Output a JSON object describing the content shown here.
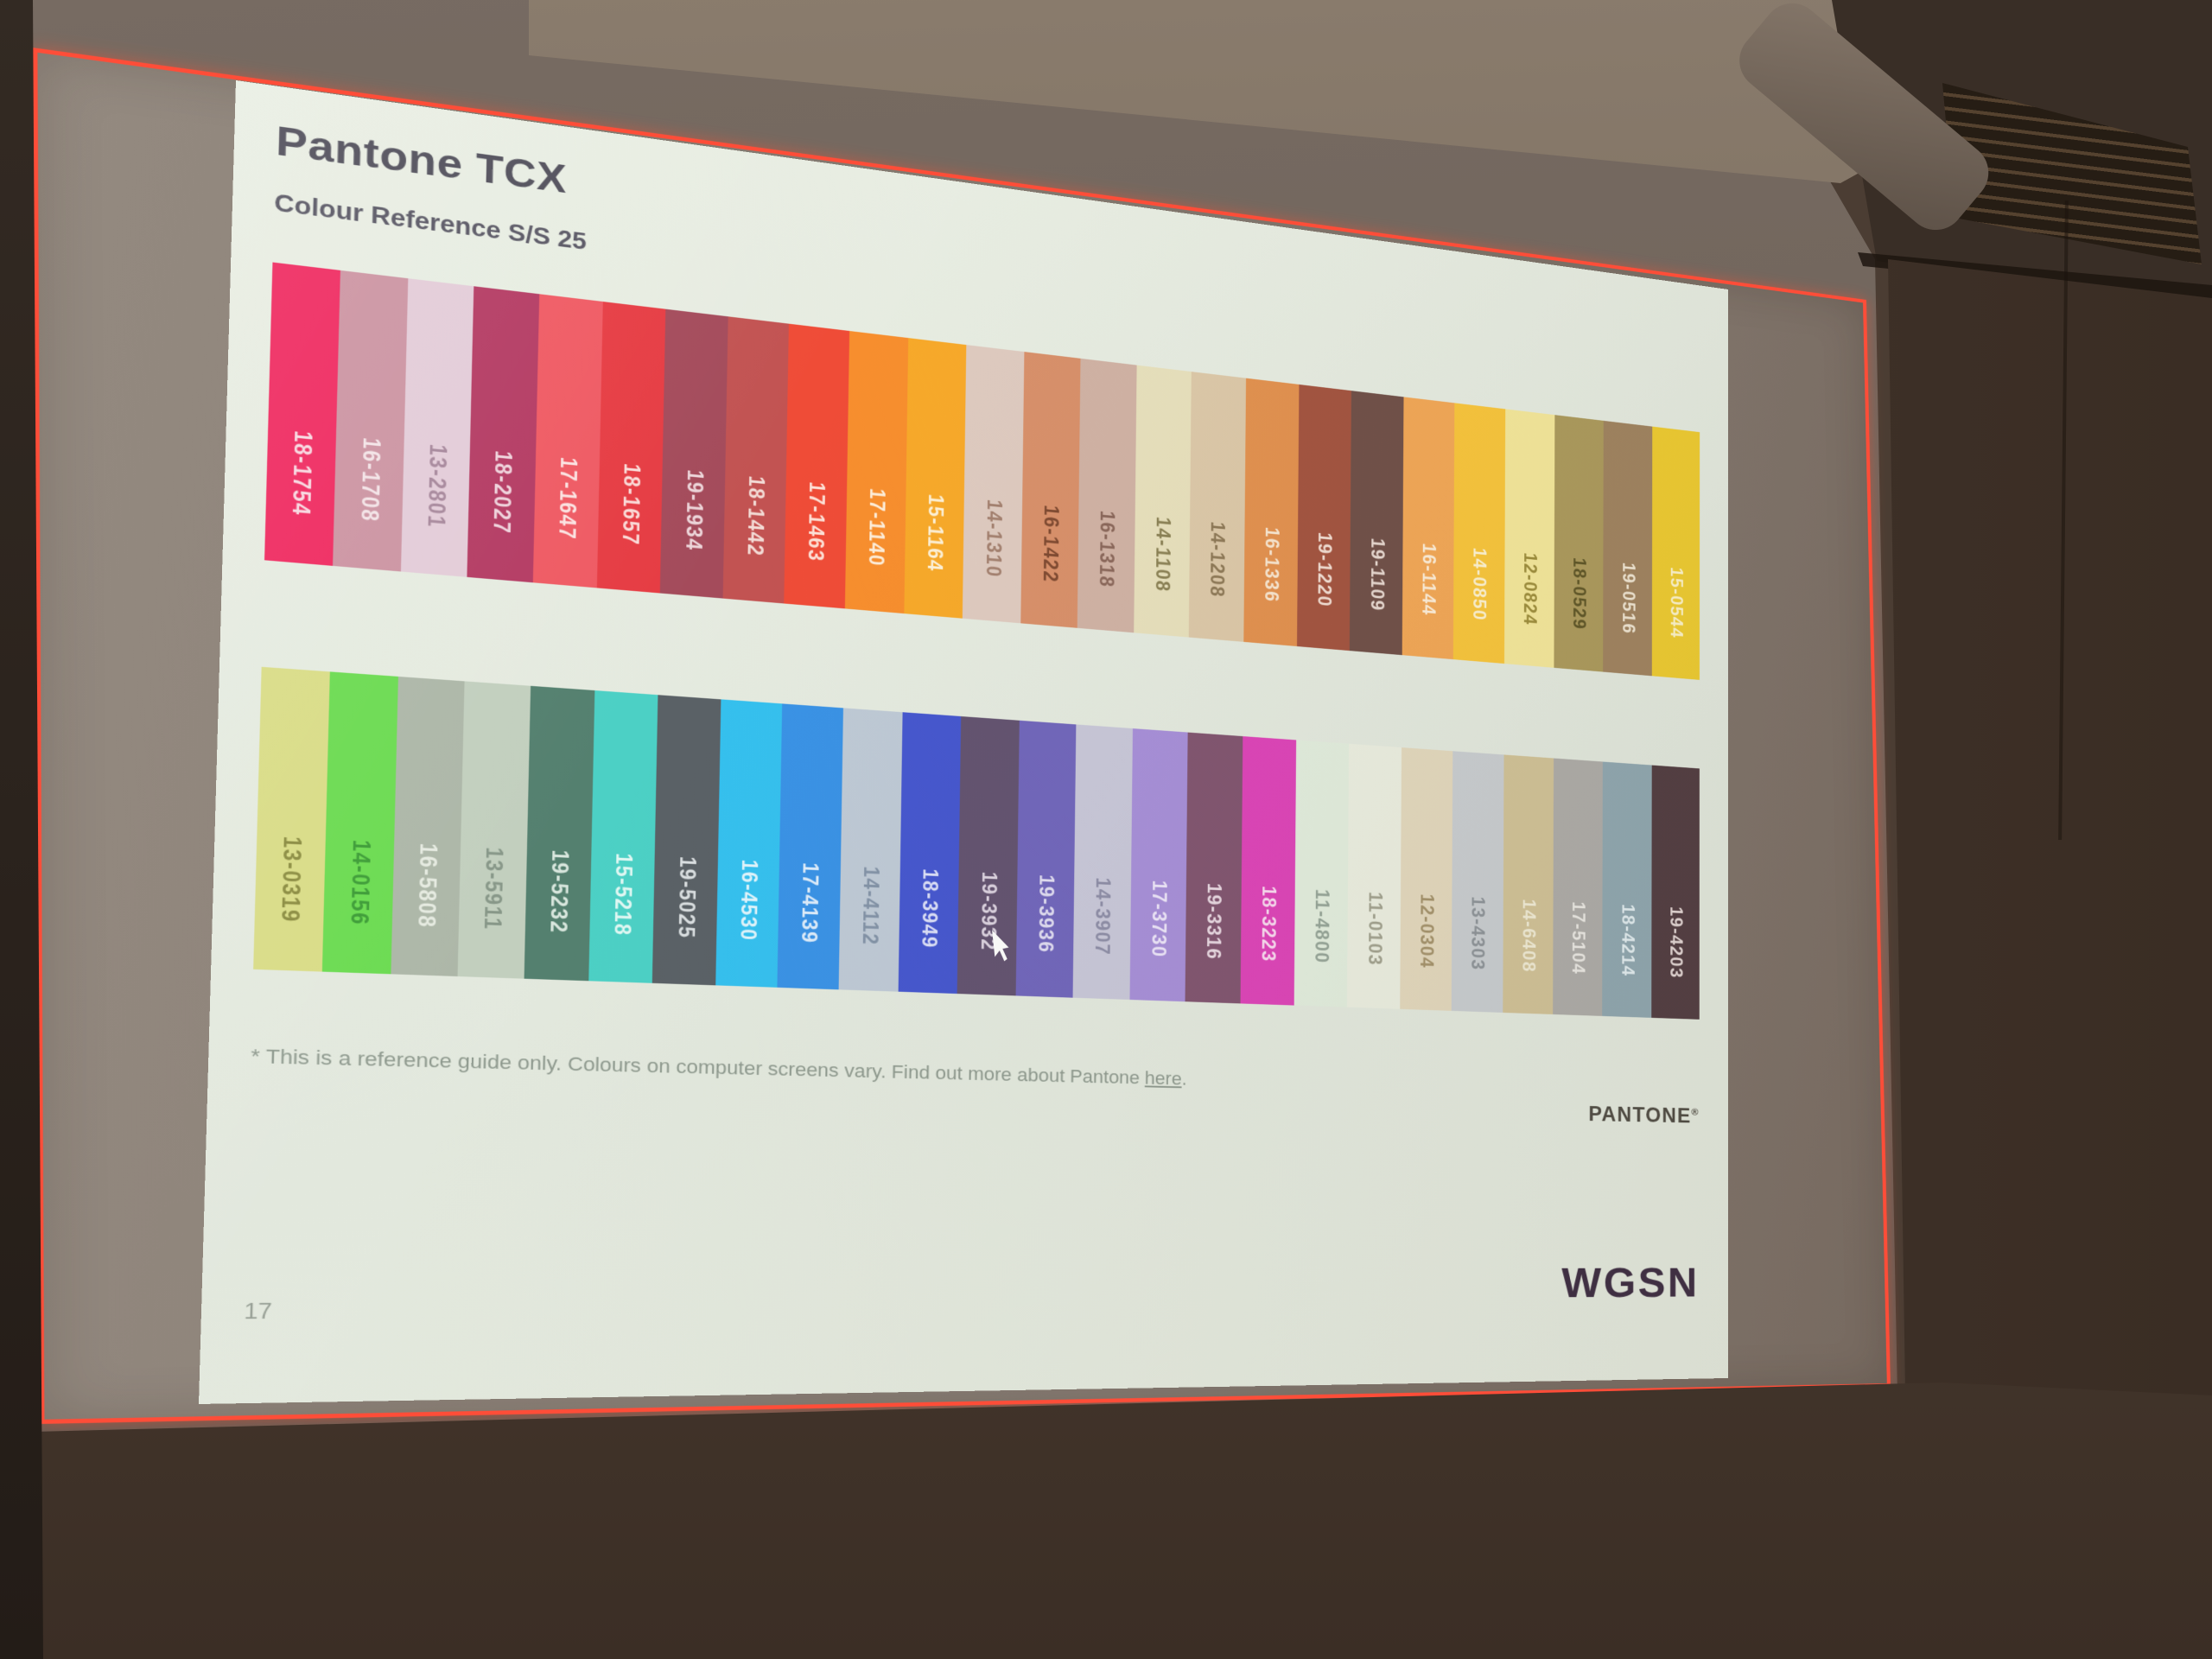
{
  "theme": {
    "red_border": "#ff4d38",
    "slide_bg": "#e7ece2",
    "wall": "#4b3d33",
    "screen_grey": "#8a7f77"
  },
  "slide": {
    "title": "Pantone TCX",
    "subtitle": "Colour Reference S/S 25",
    "rows": [
      [
        {
          "code": "18-1754",
          "color": "#ef2a60",
          "text": "#f8d9e1"
        },
        {
          "code": "16-1708",
          "color": "#cc94a2",
          "text": "#f3e4e7"
        },
        {
          "code": "13-2801",
          "color": "#e3ccd8",
          "text": "#a6879b"
        },
        {
          "code": "18-2027",
          "color": "#b43b63",
          "text": "#efd3dc"
        },
        {
          "code": "17-1647",
          "color": "#ef5a63",
          "text": "#fbe2e1"
        },
        {
          "code": "18-1657",
          "color": "#e63c43",
          "text": "#fadbd8"
        },
        {
          "code": "19-1934",
          "color": "#a44b5b",
          "text": "#edd6da"
        },
        {
          "code": "18-1442",
          "color": "#c25352",
          "text": "#f3dcd6"
        },
        {
          "code": "17-1463",
          "color": "#ef4c37",
          "text": "#fde1d7"
        },
        {
          "code": "17-1140",
          "color": "#f78e2e",
          "text": "#fdeeda"
        },
        {
          "code": "15-1164",
          "color": "#f7a92a",
          "text": "#fdf1d7"
        },
        {
          "code": "14-1310",
          "color": "#decabf",
          "text": "#a3806f"
        },
        {
          "code": "16-1422",
          "color": "#d8906a",
          "text": "#7f4a31"
        },
        {
          "code": "16-1318",
          "color": "#d0b2a4",
          "text": "#8a675a"
        },
        {
          "code": "14-1108",
          "color": "#e7e0bc",
          "text": "#8a8054"
        },
        {
          "code": "14-1208",
          "color": "#dcc8a8",
          "text": "#8d7856"
        },
        {
          "code": "16-1336",
          "color": "#e2914f",
          "text": "#f8e6d0"
        },
        {
          "code": "19-1220",
          "color": "#a35440",
          "text": "#f2ded3"
        },
        {
          "code": "19-1109",
          "color": "#705048",
          "text": "#e9dad2"
        },
        {
          "code": "16-1144",
          "color": "#f2a756",
          "text": "#fdeed8"
        },
        {
          "code": "14-0850",
          "color": "#f8c53b",
          "text": "#fdf3d3"
        },
        {
          "code": "12-0824",
          "color": "#f4e79a",
          "text": "#9c8c3a"
        },
        {
          "code": "18-0529",
          "color": "#ac9a5c",
          "text": "#5e5526"
        },
        {
          "code": "19-0516",
          "color": "#a0835f",
          "text": "#f1e7d4"
        },
        {
          "code": "15-0544",
          "color": "#eecb30",
          "text": "#fdf4cb"
        }
      ],
      [
        {
          "code": "13-0319",
          "color": "#d9dc87",
          "text": "#8b8c41"
        },
        {
          "code": "14-0156",
          "color": "#6cdb52",
          "text": "#3d9c37"
        },
        {
          "code": "16-5808",
          "color": "#adb7a8",
          "text": "#e6ebe1"
        },
        {
          "code": "13-5911",
          "color": "#c2cfbe",
          "text": "#879788"
        },
        {
          "code": "19-5232",
          "color": "#54806f",
          "text": "#d9e7de"
        },
        {
          "code": "15-5218",
          "color": "#4cd0c5",
          "text": "#e1f8f3"
        },
        {
          "code": "19-5025",
          "color": "#5a6166",
          "text": "#dadfe1"
        },
        {
          "code": "16-4530",
          "color": "#35c0ee",
          "text": "#e0f4fb"
        },
        {
          "code": "17-4139",
          "color": "#3a92e5",
          "text": "#ddecfa"
        },
        {
          "code": "14-4112",
          "color": "#bec9d5",
          "text": "#8292a6"
        },
        {
          "code": "18-3949",
          "color": "#4657ce",
          "text": "#dbdff7"
        },
        {
          "code": "19-3932",
          "color": "#635370",
          "text": "#dcd3e0"
        },
        {
          "code": "19-3936",
          "color": "#7166bb",
          "text": "#e0ddf1"
        },
        {
          "code": "14-3907",
          "color": "#c8c7d8",
          "text": "#8d8da6"
        },
        {
          "code": "17-3730",
          "color": "#a78fd8",
          "text": "#ede6f9"
        },
        {
          "code": "19-3316",
          "color": "#815570",
          "text": "#e9d9e2"
        },
        {
          "code": "18-3223",
          "color": "#dd44b8",
          "text": "#f9dbf0"
        },
        {
          "code": "11-4800",
          "color": "#e2eddd",
          "text": "#95a497"
        },
        {
          "code": "11-0103",
          "color": "#ebeee0",
          "text": "#a1a18e"
        },
        {
          "code": "12-0304",
          "color": "#e3d8bd",
          "text": "#a4926b"
        },
        {
          "code": "13-4303",
          "color": "#c9cdd0",
          "text": "#8d9398"
        },
        {
          "code": "14-6408",
          "color": "#d1c297",
          "text": "#f1ecd6"
        },
        {
          "code": "17-5104",
          "color": "#aeaca8",
          "text": "#ebe9e4"
        },
        {
          "code": "18-4214",
          "color": "#90a7b0",
          "text": "#e3eef1"
        },
        {
          "code": "19-4203",
          "color": "#523c41",
          "text": "#e4d7d5"
        }
      ]
    ],
    "footnote": {
      "prefix": "* This is a reference guide only. Colours on computer screens vary. Find out more about Pantone",
      "link": "here",
      "suffix": "."
    },
    "pantone_logo": "PANTONE",
    "pantone_mark": "®",
    "page_number": "17",
    "wgsn_logo": "WGSN"
  }
}
